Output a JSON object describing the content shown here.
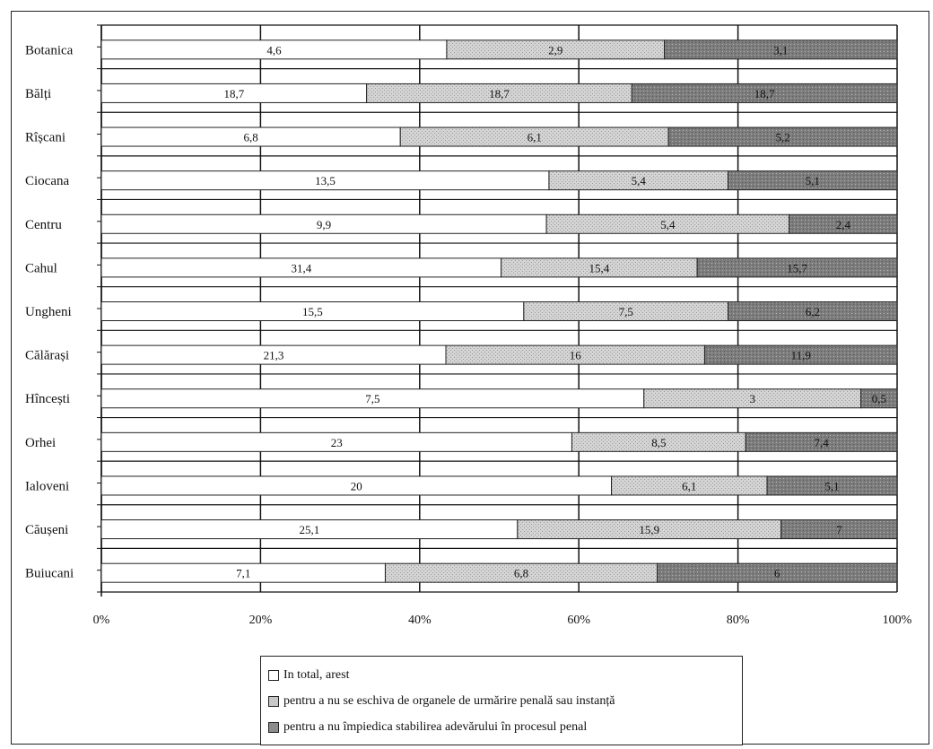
{
  "chart_data": {
    "type": "bar",
    "orientation": "horizontal",
    "stacked": true,
    "normalized_percent": true,
    "categories": [
      "Botanica",
      "Bălți",
      "Rîșcani",
      "Ciocana",
      "Centru",
      "Cahul",
      "Ungheni",
      "Călărași",
      "Hîncești",
      "Orhei",
      "Ialoveni",
      "Căușeni",
      "Buiucani"
    ],
    "series": [
      {
        "name": "In total, arest",
        "values": [
          4.6,
          18.7,
          6.8,
          13.5,
          9.9,
          31.4,
          15.5,
          21.3,
          7.5,
          23,
          20,
          25.1,
          7.1
        ],
        "labels": [
          "4,6",
          "18,7",
          "6,8",
          "13,5",
          "9,9",
          "31,4",
          "15,5",
          "21,3",
          "7,5",
          "23",
          "20",
          "25,1",
          "7,1"
        ],
        "color": "#ffffff"
      },
      {
        "name": "pentru a nu se eschiva de organele de urmărire penală sau instanță",
        "values": [
          2.9,
          18.7,
          6.1,
          5.4,
          5.4,
          15.4,
          7.5,
          16,
          3,
          8.5,
          6.1,
          15.9,
          6.8
        ],
        "labels": [
          "2,9",
          "18,7",
          "6,1",
          "5,4",
          "5,4",
          "15,4",
          "7,5",
          "16",
          "3",
          "8,5",
          "6,1",
          "15,9",
          "6,8"
        ],
        "color": "#c8c8c8"
      },
      {
        "name": "pentru a nu împiedica stabilirea adevărului în procesul penal",
        "values": [
          3.1,
          18.7,
          5.2,
          5.1,
          2.4,
          15.7,
          6.2,
          11.9,
          0.5,
          7.4,
          5.1,
          7,
          6
        ],
        "labels": [
          "3,1",
          "18,7",
          "5,2",
          "5,1",
          "2,4",
          "15,7",
          "6,2",
          "11,9",
          "0,5",
          "7,4",
          "5,1",
          "7",
          "6"
        ],
        "color": "#8c8c8c"
      }
    ],
    "xticks": [
      "0%",
      "20%",
      "40%",
      "60%",
      "80%",
      "100%"
    ],
    "xlim": [
      0,
      100
    ],
    "grid": true,
    "legend_position": "bottom"
  }
}
